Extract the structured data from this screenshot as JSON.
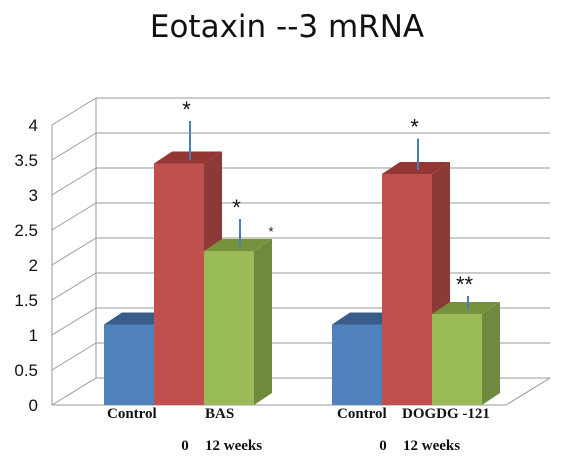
{
  "chart_data": {
    "type": "bar",
    "title": "Eotaxin --3 mRNA",
    "ylim": [
      0,
      4
    ],
    "yticks": [
      "0",
      "0.5",
      "1",
      "1.5",
      "2",
      "2.5",
      "3",
      "3.5",
      "4"
    ],
    "groups": [
      {
        "label_row1": [
          "Control",
          "BAS"
        ],
        "label_row2": [
          "0",
          "12 weeks"
        ],
        "values": [
          1.15,
          3.45,
          2.2
        ],
        "errors": [
          null,
          0.55,
          0.4
        ],
        "annotations": [
          "",
          "*",
          "*"
        ]
      },
      {
        "label_row1": [
          "Control",
          "DOGDG -121"
        ],
        "label_row2": [
          "0",
          "12 weeks"
        ],
        "values": [
          1.15,
          3.3,
          1.3
        ],
        "errors": [
          null,
          0.45,
          0.2
        ],
        "annotations": [
          "",
          "*",
          "**"
        ]
      }
    ],
    "stray_mark": "*",
    "bar_colors": [
      "#4f81bd",
      "#c0504d",
      "#9bbb59"
    ],
    "bar_side_colors": [
      "#3a5f8c",
      "#8b3a38",
      "#6f8a3f"
    ],
    "bar_top_colors": [
      "#385d8a",
      "#943634",
      "#76923c"
    ],
    "error_color": "#4a7ebb",
    "grid": true,
    "style": "3d-clustered-column"
  }
}
